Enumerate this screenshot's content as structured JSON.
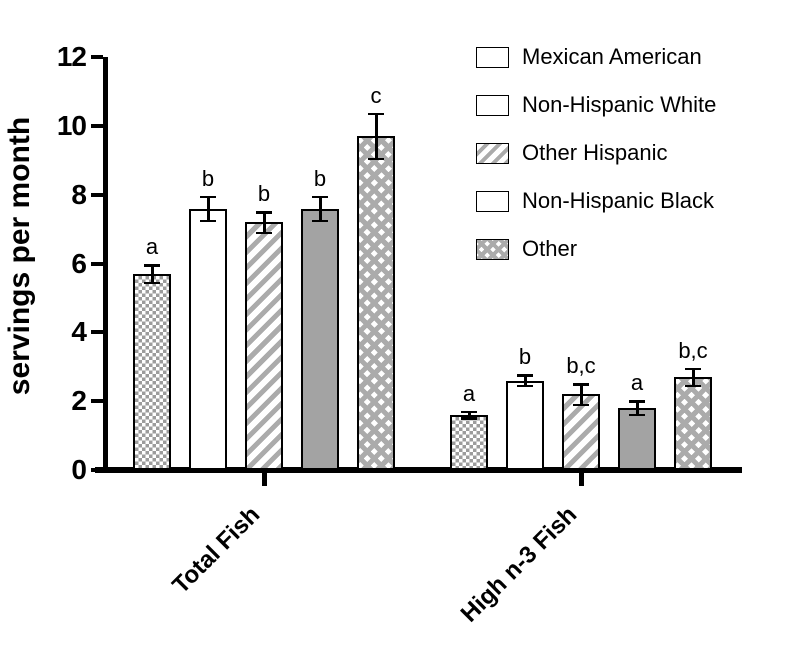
{
  "chart_data": {
    "type": "bar",
    "title": "",
    "xlabel": "",
    "ylabel": "servings per month",
    "ylim": [
      0,
      12
    ],
    "yticks": [
      0,
      2,
      4,
      6,
      8,
      10,
      12
    ],
    "grid": false,
    "legend_position": "top-right",
    "categories": [
      "Total Fish",
      "High n-3 Fish"
    ],
    "series": [
      {
        "name": "Mexican American",
        "pattern": "checker",
        "values": [
          5.7,
          1.6
        ],
        "errors": [
          0.25,
          0.1
        ],
        "sig_labels": [
          "a",
          "a"
        ]
      },
      {
        "name": "Non-Hispanic White",
        "pattern": "white",
        "values": [
          7.6,
          2.6
        ],
        "errors": [
          0.35,
          0.15
        ],
        "sig_labels": [
          "b",
          "b"
        ]
      },
      {
        "name": "Other Hispanic",
        "pattern": "diagonal-stripes",
        "values": [
          7.2,
          2.2
        ],
        "errors": [
          0.3,
          0.3
        ],
        "sig_labels": [
          "b",
          "b,c"
        ]
      },
      {
        "name": "Non-Hispanic Black",
        "pattern": "solid-gray",
        "values": [
          7.6,
          1.8
        ],
        "errors": [
          0.35,
          0.2
        ],
        "sig_labels": [
          "b",
          "a"
        ]
      },
      {
        "name": "Other",
        "pattern": "crosshatch",
        "values": [
          9.7,
          2.7
        ],
        "errors": [
          0.65,
          0.25
        ],
        "sig_labels": [
          "c",
          "b,c"
        ]
      }
    ],
    "colors": {
      "axis": "#000000",
      "background": "#ffffff",
      "solid_bar_gray": "#a3a3a3",
      "pattern_gray": "#ababab"
    }
  }
}
